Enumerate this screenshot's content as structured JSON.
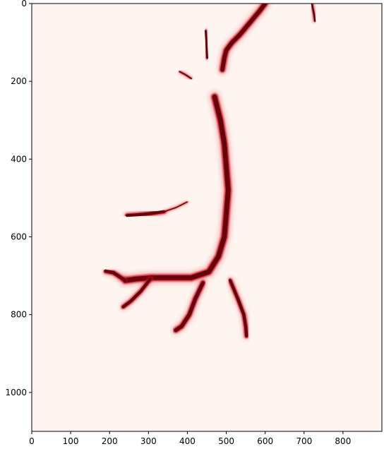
{
  "chart_data": {
    "type": "heatmap",
    "colormap": "Reds",
    "background_color": "#fff5f0",
    "vessel_color": "#67000d",
    "mid_color": "#cb181d",
    "xlim": [
      0,
      900
    ],
    "ylim": [
      1100,
      0
    ],
    "xticks": [
      0,
      100,
      200,
      300,
      400,
      500,
      600,
      700,
      800
    ],
    "yticks": [
      0,
      200,
      400,
      600,
      800,
      1000
    ],
    "grid": false,
    "paths": [
      {
        "name": "main-trunk",
        "width": 14,
        "points": [
          [
            470,
            240
          ],
          [
            485,
            300
          ],
          [
            495,
            360
          ],
          [
            500,
            420
          ],
          [
            505,
            480
          ],
          [
            500,
            540
          ],
          [
            495,
            600
          ],
          [
            480,
            650
          ],
          [
            455,
            690
          ],
          [
            410,
            705
          ],
          [
            350,
            705
          ],
          [
            310,
            705
          ],
          [
            270,
            708
          ],
          [
            240,
            712
          ]
        ]
      },
      {
        "name": "top-upper-branch",
        "width": 12,
        "points": [
          [
            600,
            0
          ],
          [
            585,
            20
          ],
          [
            560,
            50
          ],
          [
            535,
            80
          ],
          [
            515,
            100
          ],
          [
            500,
            120
          ],
          [
            495,
            140
          ],
          [
            490,
            170
          ]
        ]
      },
      {
        "name": "top-right-faint",
        "width": 5,
        "points": [
          [
            720,
            0
          ],
          [
            725,
            25
          ],
          [
            728,
            45
          ]
        ]
      },
      {
        "name": "small-vertical",
        "width": 6,
        "points": [
          [
            447,
            70
          ],
          [
            449,
            100
          ],
          [
            451,
            140
          ]
        ]
      },
      {
        "name": "small-left-upper",
        "width": 4,
        "points": [
          [
            380,
            175
          ],
          [
            395,
            183
          ],
          [
            410,
            193
          ]
        ]
      },
      {
        "name": "mid-left-branch",
        "width": 9,
        "points": [
          [
            245,
            545
          ],
          [
            275,
            543
          ],
          [
            305,
            540
          ],
          [
            340,
            535
          ]
        ]
      },
      {
        "name": "mid-left-faint",
        "width": 3,
        "points": [
          [
            340,
            535
          ],
          [
            370,
            525
          ],
          [
            400,
            510
          ]
        ]
      },
      {
        "name": "lower-left-horizontal",
        "width": 10,
        "points": [
          [
            240,
            712
          ],
          [
            210,
            692
          ],
          [
            190,
            688
          ]
        ]
      },
      {
        "name": "lower-left-down",
        "width": 9,
        "points": [
          [
            305,
            708
          ],
          [
            280,
            740
          ],
          [
            255,
            765
          ],
          [
            235,
            780
          ]
        ]
      },
      {
        "name": "lower-middle-down",
        "width": 11,
        "points": [
          [
            440,
            718
          ],
          [
            420,
            760
          ],
          [
            405,
            800
          ],
          [
            385,
            830
          ],
          [
            370,
            840
          ]
        ]
      },
      {
        "name": "lower-right-down",
        "width": 9,
        "points": [
          [
            510,
            712
          ],
          [
            530,
            760
          ],
          [
            545,
            800
          ],
          [
            550,
            830
          ],
          [
            552,
            855
          ]
        ]
      }
    ]
  }
}
